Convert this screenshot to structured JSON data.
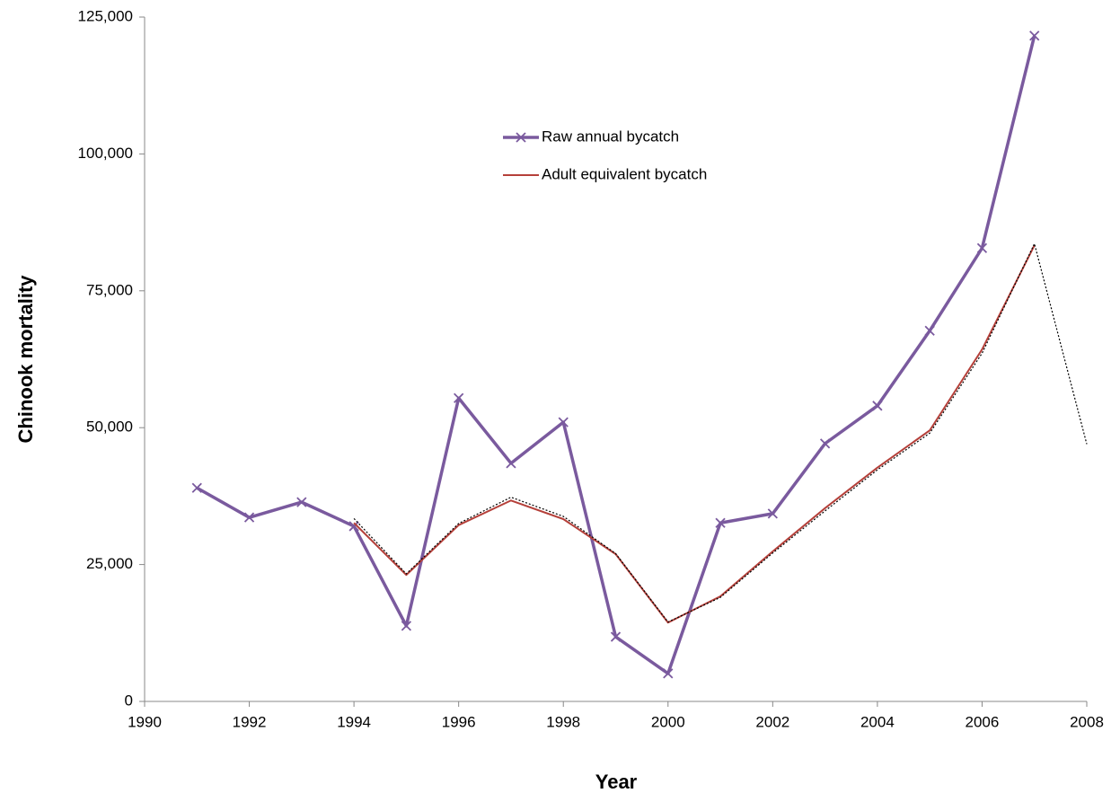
{
  "chart_data": {
    "type": "line",
    "x_label": "Year",
    "y_label": "Chinook mortality",
    "x": [
      1991,
      1992,
      1993,
      1994,
      1995,
      1996,
      1997,
      1998,
      1999,
      2000,
      2001,
      2002,
      2003,
      2004,
      2005,
      2006,
      2007,
      2008
    ],
    "series": [
      {
        "name": "Raw annual bycatch",
        "color": "#7a5a9e",
        "width": 3.5,
        "marker": "x",
        "values": [
          39000,
          33600,
          36400,
          32000,
          13800,
          55400,
          43500,
          51000,
          11800,
          5100,
          32600,
          34300,
          47100,
          54000,
          67700,
          82800,
          121600,
          null
        ]
      },
      {
        "name": "Adult equivalent bycatch",
        "color": "#b5403a",
        "width": 2,
        "values": [
          null,
          null,
          null,
          32600,
          23100,
          32200,
          36700,
          33300,
          26900,
          14400,
          19200,
          27400,
          35300,
          42700,
          49500,
          64300,
          83300,
          null
        ]
      },
      {
        "color": "#000000",
        "width": 1.2,
        "dash": "2 2",
        "values": [
          null,
          null,
          null,
          33400,
          23300,
          32500,
          37300,
          33800,
          27000,
          14500,
          19000,
          27100,
          34800,
          42300,
          49000,
          63600,
          83600,
          47000
        ]
      }
    ],
    "xlim": [
      1990,
      2008
    ],
    "xticks": [
      1990,
      1992,
      1994,
      1996,
      1998,
      2000,
      2002,
      2004,
      2006,
      2008
    ],
    "ylim": [
      0,
      125000
    ],
    "yticks": [
      0,
      {
        "value": 25000,
        "label": "25,000"
      },
      {
        "value": 50000,
        "label": "50,000"
      },
      {
        "value": 75000,
        "label": "75,000"
      },
      {
        "value": 100000,
        "label": "100,000"
      },
      {
        "value": 125000,
        "label": "125,000"
      }
    ],
    "grid": false
  }
}
